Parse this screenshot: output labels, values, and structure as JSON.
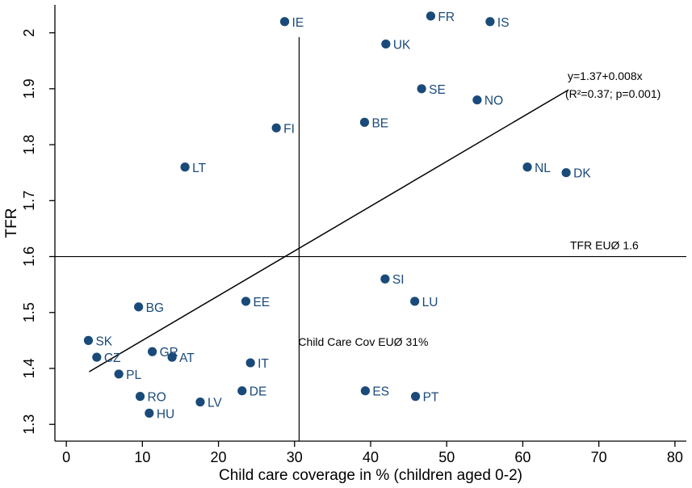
{
  "chart_data": {
    "type": "scatter",
    "title": "",
    "xlabel": "Child care coverage in % (children aged 0-2)",
    "ylabel": "TFR",
    "xlim": [
      -1.5,
      81.5
    ],
    "ylim": [
      1.27,
      2.05
    ],
    "xticks": [
      0,
      10,
      20,
      30,
      40,
      50,
      60,
      70,
      80
    ],
    "yticks": [
      1.3,
      1.4,
      1.5,
      1.6,
      1.7,
      1.8,
      1.9,
      2.0
    ],
    "ytick_labels": [
      "1.3",
      "1.4",
      "1.5",
      "1.6",
      "1.7",
      "1.8",
      "1.9",
      "2"
    ],
    "grid": false,
    "marker_color": "#1a4a7a",
    "points": [
      {
        "label": "IE",
        "x": 28.7,
        "y": 2.02
      },
      {
        "label": "FR",
        "x": 47.9,
        "y": 2.03
      },
      {
        "label": "IS",
        "x": 55.7,
        "y": 2.02
      },
      {
        "label": "UK",
        "x": 42.0,
        "y": 1.98
      },
      {
        "label": "SE",
        "x": 46.7,
        "y": 1.9
      },
      {
        "label": "NO",
        "x": 54.0,
        "y": 1.88
      },
      {
        "label": "BE",
        "x": 39.2,
        "y": 1.84
      },
      {
        "label": "FI",
        "x": 27.6,
        "y": 1.83
      },
      {
        "label": "LT",
        "x": 15.6,
        "y": 1.76
      },
      {
        "label": "NL",
        "x": 60.6,
        "y": 1.76
      },
      {
        "label": "DK",
        "x": 65.7,
        "y": 1.75
      },
      {
        "label": "SI",
        "x": 41.9,
        "y": 1.56
      },
      {
        "label": "LU",
        "x": 45.8,
        "y": 1.52
      },
      {
        "label": "EE",
        "x": 23.6,
        "y": 1.52
      },
      {
        "label": "BG",
        "x": 9.5,
        "y": 1.51
      },
      {
        "label": "SK",
        "x": 2.9,
        "y": 1.45
      },
      {
        "label": "CZ",
        "x": 4.0,
        "y": 1.42
      },
      {
        "label": "GR",
        "x": 11.3,
        "y": 1.43
      },
      {
        "label": "AT",
        "x": 13.9,
        "y": 1.42
      },
      {
        "label": "IT",
        "x": 24.2,
        "y": 1.41
      },
      {
        "label": "PL",
        "x": 6.9,
        "y": 1.39
      },
      {
        "label": "DE",
        "x": 23.1,
        "y": 1.36
      },
      {
        "label": "ES",
        "x": 39.3,
        "y": 1.36
      },
      {
        "label": "PT",
        "x": 45.9,
        "y": 1.35
      },
      {
        "label": "RO",
        "x": 9.7,
        "y": 1.35
      },
      {
        "label": "LV",
        "x": 17.6,
        "y": 1.34
      },
      {
        "label": "HU",
        "x": 10.9,
        "y": 1.32
      }
    ],
    "fit_line": {
      "intercept": 1.37,
      "slope": 0.008,
      "x_range": [
        3,
        66
      ],
      "label_line1": "y=1.37+0.008x",
      "label_line2": "(R²=0.37; p=0.001)"
    },
    "reference_lines": {
      "horizontal": {
        "y": 1.6,
        "label": "TFR EUØ 1.6"
      },
      "vertical": {
        "x": 30.6,
        "label": "Child Care Cov EUØ 31%"
      }
    }
  }
}
